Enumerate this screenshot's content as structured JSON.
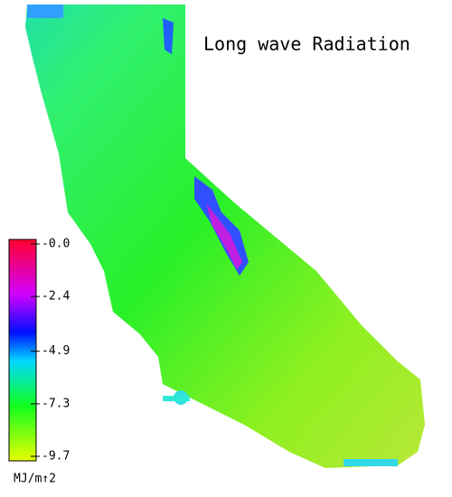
{
  "title": "Long wave Radiation",
  "colorbar": {
    "ticks": [
      {
        "value": 0,
        "label": "-0.0"
      },
      -2.4,
      -4.9,
      -7.3,
      -9.7
    ],
    "unit": "MJ/m↑2"
  }
}
